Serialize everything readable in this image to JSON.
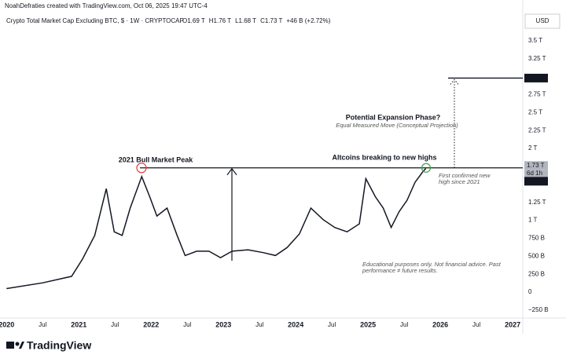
{
  "credit": "NoahDefraties created with TradingView.com, Oct 06, 2025 19:47 UTC-4",
  "chart_data": {
    "type": "line",
    "title": "Crypto Total Market Cap Excluding BTC, $ · 1W · CRYPTOCAP",
    "ohlc": [
      "O1.69 T",
      "H1.76 T",
      "L1.68 T",
      "C1.73 T",
      "+46 B (+2.72%)"
    ],
    "currency": "USD",
    "color": "#131722",
    "x": [
      2020.0,
      2020.5,
      2020.9,
      2021.05,
      2021.22,
      2021.38,
      2021.49,
      2021.6,
      2021.71,
      2021.87,
      2021.98,
      2022.08,
      2022.22,
      2022.36,
      2022.47,
      2022.63,
      2022.8,
      2022.96,
      2023.12,
      2023.34,
      2023.55,
      2023.72,
      2023.88,
      2024.05,
      2024.21,
      2024.38,
      2024.54,
      2024.71,
      2024.88,
      2024.97,
      2025.1,
      2025.21,
      2025.32,
      2025.43,
      2025.54,
      2025.65,
      2025.76,
      2025.8
    ],
    "values": [
      0.05,
      0.13,
      0.22,
      0.46,
      0.79,
      1.44,
      0.84,
      0.79,
      1.17,
      1.61,
      1.33,
      1.06,
      1.17,
      0.79,
      0.51,
      0.57,
      0.57,
      0.48,
      0.57,
      0.59,
      0.55,
      0.51,
      0.62,
      0.81,
      1.17,
      1.01,
      0.9,
      0.84,
      0.95,
      1.58,
      1.33,
      1.17,
      0.9,
      1.12,
      1.28,
      1.53,
      1.68,
      1.72
    ],
    "xlim": [
      2019.91,
      2027.14
    ],
    "ylim": [
      -0.36,
      3.87
    ],
    "xticks": [
      {
        "value": 2020,
        "label": "2020"
      },
      {
        "value": 2020.5,
        "label": "Jul"
      },
      {
        "value": 2021,
        "label": "2021"
      },
      {
        "value": 2021.5,
        "label": "Jul"
      },
      {
        "value": 2022,
        "label": "2022"
      },
      {
        "value": 2022.5,
        "label": "Jul"
      },
      {
        "value": 2023,
        "label": "2023"
      },
      {
        "value": 2023.5,
        "label": "Jul"
      },
      {
        "value": 2024,
        "label": "2024"
      },
      {
        "value": 2024.5,
        "label": "Jul"
      },
      {
        "value": 2025,
        "label": "2025"
      },
      {
        "value": 2025.5,
        "label": "Jul"
      },
      {
        "value": 2026,
        "label": "2026"
      },
      {
        "value": 2026.5,
        "label": "Jul"
      },
      {
        "value": 2027,
        "label": "2027"
      }
    ],
    "yticks": [
      {
        "value": 3.5,
        "label": "3.5 T"
      },
      {
        "value": 3.25,
        "label": "3.25 T"
      },
      {
        "value": 2.75,
        "label": "2.75 T"
      },
      {
        "value": 2.5,
        "label": "2.5 T"
      },
      {
        "value": 2.25,
        "label": "2.25 T"
      },
      {
        "value": 2,
        "label": "2 T"
      },
      {
        "value": 1.25,
        "label": "1.25 T"
      },
      {
        "value": 1,
        "label": "1 T"
      },
      {
        "value": 0.75,
        "label": "750 B"
      },
      {
        "value": 0.5,
        "label": "500 B"
      },
      {
        "value": 0.25,
        "label": "250 B"
      },
      {
        "value": 0,
        "label": "0"
      },
      {
        "value": -0.25,
        "label": "−250 B"
      }
    ],
    "price_labels": {
      "current": {
        "value": 1.73,
        "label": "1.73 T"
      },
      "countdown": "6d 1h",
      "previous": {
        "value": 1.71,
        "label": "1.71 T"
      },
      "target": {
        "value": 2.98,
        "label": "2.98 T"
      }
    },
    "annotations": {
      "peak": "2021 Bull Market Peak",
      "expansion": "Potential Expansion Phase?",
      "measured": "Equal Measured Move (Conceptual Projection)",
      "breaking": "Altcoins breaking to new highs",
      "confirmed_1": "First confirmed new",
      "confirmed_2": "high since 2021",
      "disclaimer_1": "Educational purposes only. Not financial advice. Past",
      "disclaimer_2": "performance ≠ future results."
    }
  },
  "brand": "TradingView"
}
